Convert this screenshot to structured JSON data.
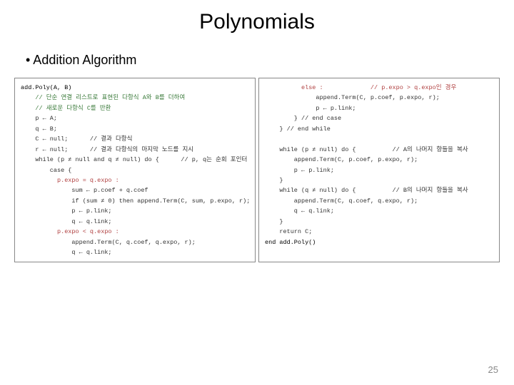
{
  "title": "Polynomials",
  "subtitle_bullet": "•  Addition Algorithm",
  "page_number": "25",
  "code_left": {
    "l1": "add.Poly(A, B)",
    "l2": "    // 단순 연결 리스트로 표현된 다항식 A와 B를 더하여",
    "l3": "    // 새로운 다항식 C를 반환",
    "l4": "    p ← A;",
    "l5": "    q ← B;",
    "l6": "    C ← null;      // 결과 다항식",
    "l7": "    r ← null;      // 결과 다항식의 마지막 노드를 지시",
    "l8": "    while (p ≠ null and q ≠ null) do {      // p, q는 순회 포인터",
    "l9": "        case {",
    "l10": "          p.expo = q.expo :",
    "l11": "              sum ← p.coef + q.coef",
    "l12": "              if (sum ≠ 0) then append.Term(C, sum, p.expo, r);",
    "l13": "              p ← p.link;",
    "l14": "              q ← q.link;",
    "l15": "          p.expo < q.expo :",
    "l16": "              append.Term(C, q.coef, q.expo, r);",
    "l17": "              q ← q.link;"
  },
  "code_right": {
    "l1": "          else :             // p.expo > q.expo인 경우",
    "l2": "              append.Term(C, p.coef, p.expo, r);",
    "l3": "              p ← p.link;",
    "l4": "        } // end case",
    "l5": "    } // end while",
    "l6": "",
    "l7": "    while (p ≠ null) do {          // A의 나머지 항들을 복사",
    "l8": "        append.Term(C, p.coef, p.expo, r);",
    "l9": "        p ← p.link;",
    "l10": "    }",
    "l11": "    while (q ≠ null) do {          // B의 나머지 항들을 복사",
    "l12": "        append.Term(C, q.coef, q.expo, r);",
    "l13": "        q ← q.link;",
    "l14": "    }",
    "l15": "    return C;",
    "l16": "end add.Poly()"
  },
  "style": {
    "title_fontsize": 30,
    "subtitle_fontsize": 18,
    "code_fontsize": 8.5,
    "code_border_color": "#888888",
    "comment_color": "#3a7a3a",
    "keyword_color": "#b04040",
    "background": "#ffffff",
    "page_num_color": "#888888"
  }
}
